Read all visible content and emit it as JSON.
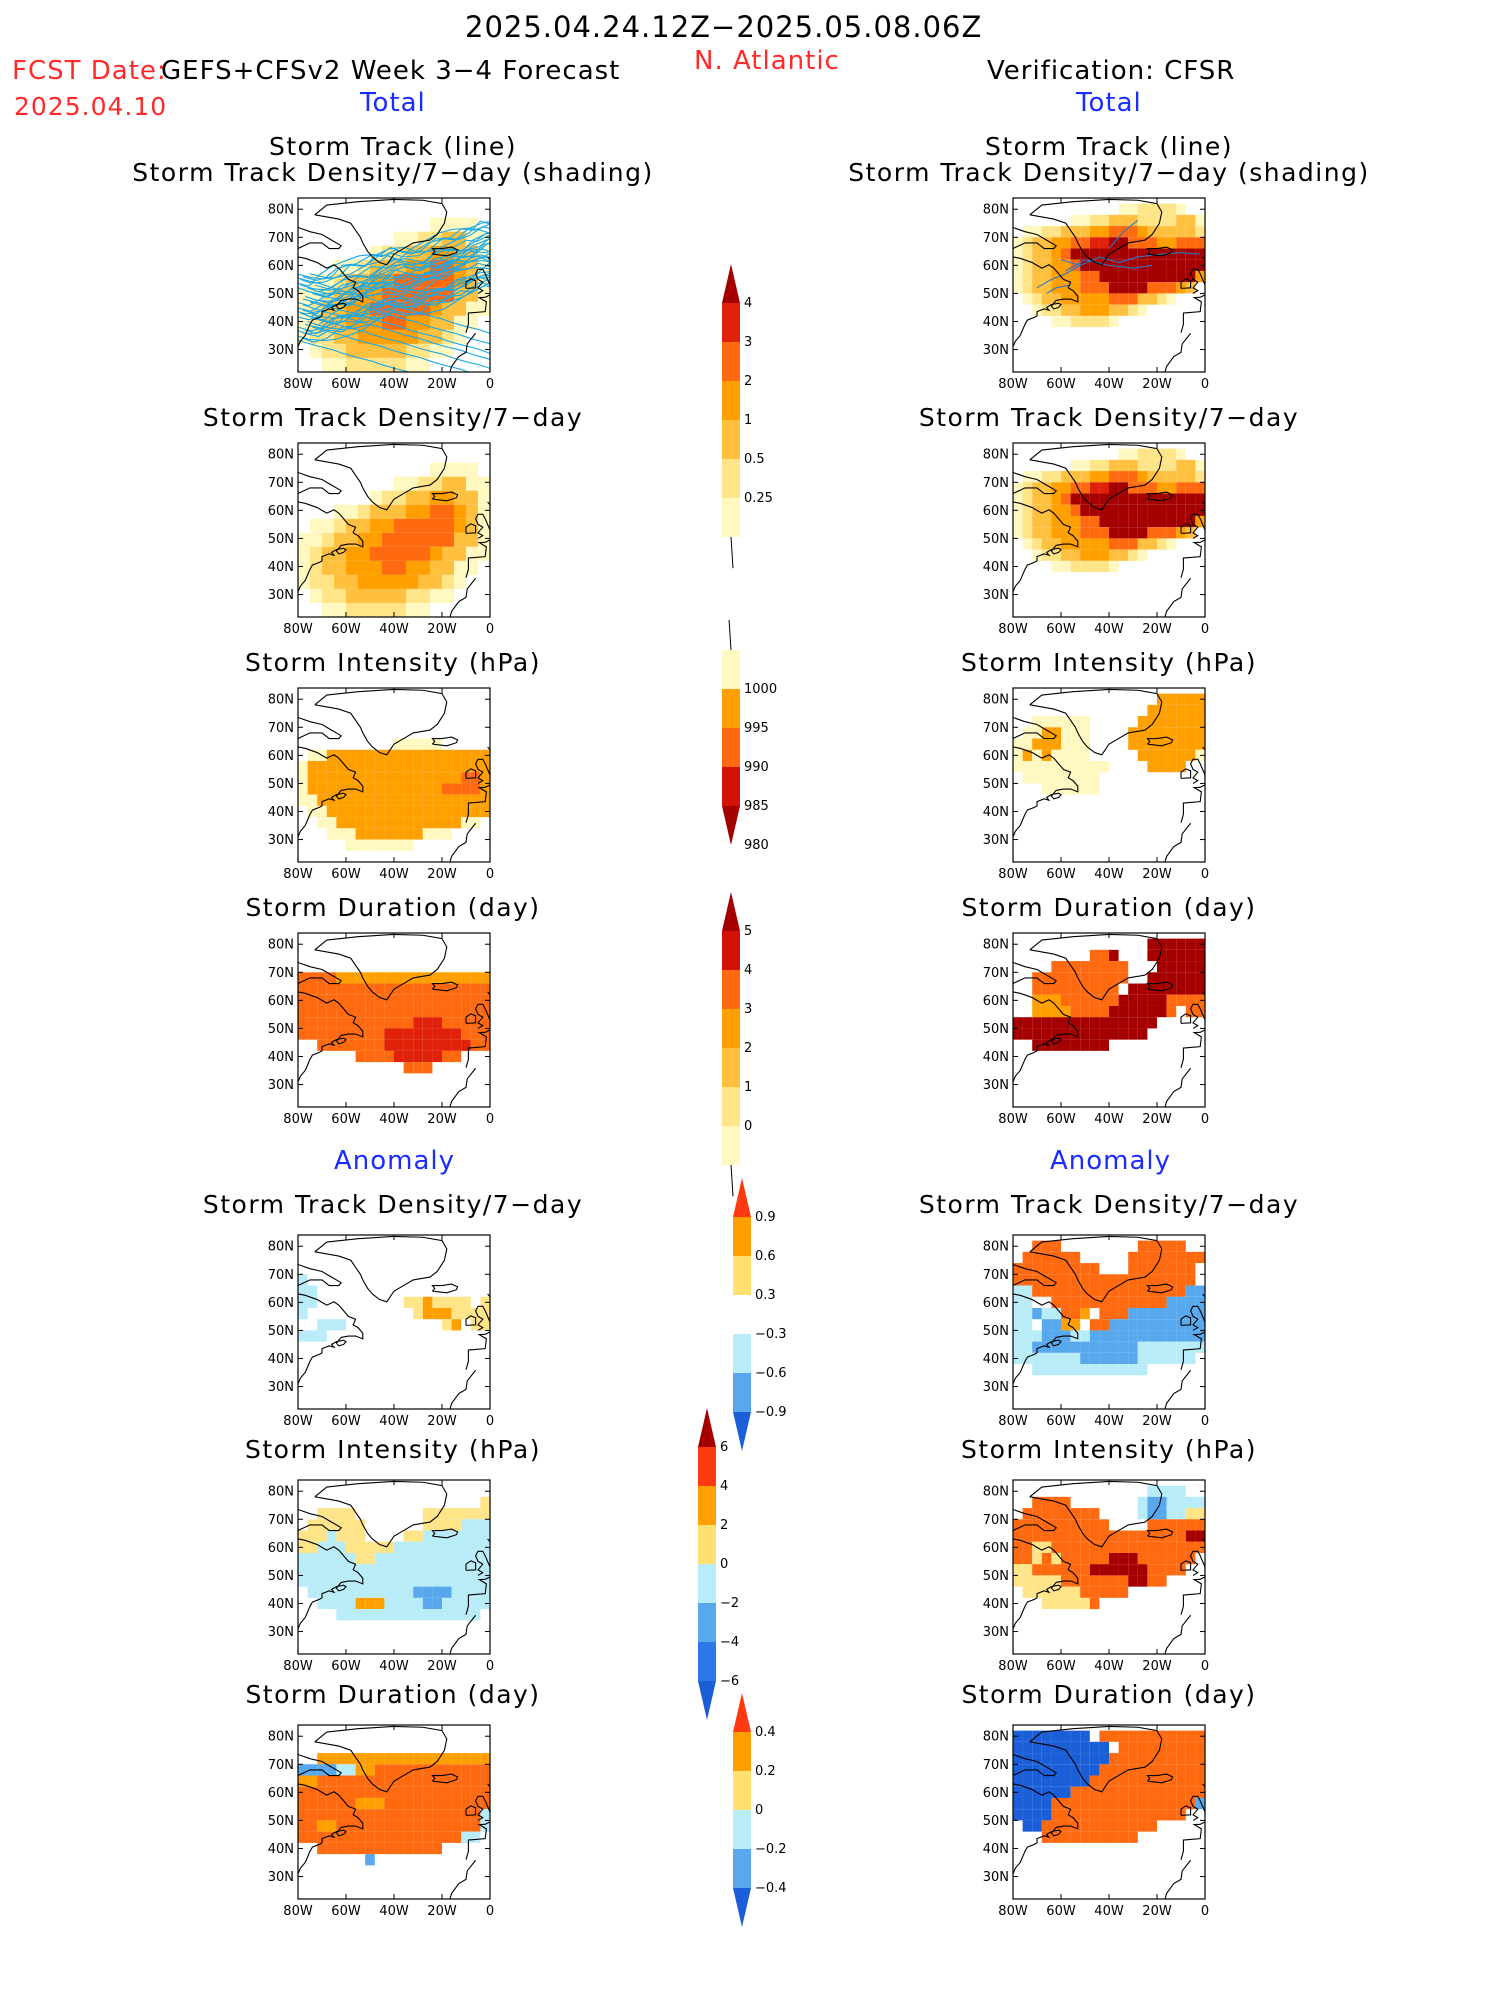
{
  "header": {
    "date_range": "2025.04.24.12Z−2025.05.08.06Z",
    "region": "N. Atlantic",
    "fcst_date_label": "FCST Date:",
    "forecast_system": "GEFS+CFSv2 Week 3−4 Forecast",
    "fcst_date_value": "2025.04.10",
    "verification": "Verification: CFSR"
  },
  "sections": {
    "total": "Total",
    "anomaly": "Anomaly"
  },
  "panel_titles": {
    "track_line": "Storm Track (line)",
    "track_shading": "Storm Track Density/7−day (shading)",
    "density": "Storm Track Density/7−day",
    "intensity": "Storm Intensity (hPa)",
    "duration": "Storm Duration (day)"
  },
  "map_axes": {
    "lat_ticks": [
      "80N",
      "70N",
      "60N",
      "50N",
      "40N",
      "30N"
    ],
    "lon_ticks": [
      "80W",
      "60W",
      "40W",
      "20W",
      "0"
    ]
  },
  "colorbars": [
    {
      "name": "density-total",
      "labels": [
        "4",
        "3",
        "2",
        "1",
        "0.5",
        "0.25"
      ],
      "colors": [
        "#a50000",
        "#e0220a",
        "#ff6a10",
        "#ffa000",
        "#ffc040",
        "#ffe488",
        "#fff8c0"
      ]
    },
    {
      "name": "intensity-total",
      "labels": [
        "1000",
        "995",
        "990",
        "985",
        "980"
      ],
      "colors": [
        "#fff8c0",
        "#ffa000",
        "#ff6a10",
        "#d21208",
        "#a50000"
      ]
    },
    {
      "name": "duration-total",
      "labels": [
        "5",
        "4",
        "3",
        "2",
        "1",
        "0"
      ],
      "colors": [
        "#a50000",
        "#d21208",
        "#ff6a10",
        "#ffa000",
        "#ffc040",
        "#ffe488",
        "#fff8c0"
      ]
    },
    {
      "name": "density-anomaly",
      "labels": [
        "0.9",
        "0.6",
        "0.3",
        "−0.3",
        "−0.6",
        "−0.9"
      ],
      "colors": [
        "#ff3a10",
        "#ffa000",
        "#ffe070",
        "#ffffff",
        "#b8ecf8",
        "#58a8ee",
        "#1a5ed8"
      ]
    },
    {
      "name": "intensity-anomaly",
      "labels": [
        "6",
        "4",
        "2",
        "0",
        "−2",
        "−4",
        "−6"
      ],
      "colors": [
        "#a50000",
        "#ff3a10",
        "#ffa000",
        "#ffe070",
        "#b8ecf8",
        "#58a8ee",
        "#2d78e8",
        "#1a5ed8"
      ]
    },
    {
      "name": "duration-anomaly",
      "labels": [
        "0.4",
        "0.2",
        "0",
        "−0.2",
        "−0.4"
      ],
      "colors": [
        "#ff3a10",
        "#ffa000",
        "#ffe070",
        "#b8ecf8",
        "#58a8ee",
        "#1a5ed8"
      ]
    }
  ],
  "palette": {
    "dark_red": "#a50000",
    "red": "#e0220a",
    "orange_red": "#ff6a10",
    "orange": "#ffa000",
    "light_orange": "#ffc040",
    "yellow": "#ffe488",
    "pale_yellow": "#fff8c0",
    "light_blue": "#b8ecf8",
    "mid_blue": "#58a8ee",
    "blue": "#1a5ed8",
    "track_line": "#1aa8e8"
  }
}
